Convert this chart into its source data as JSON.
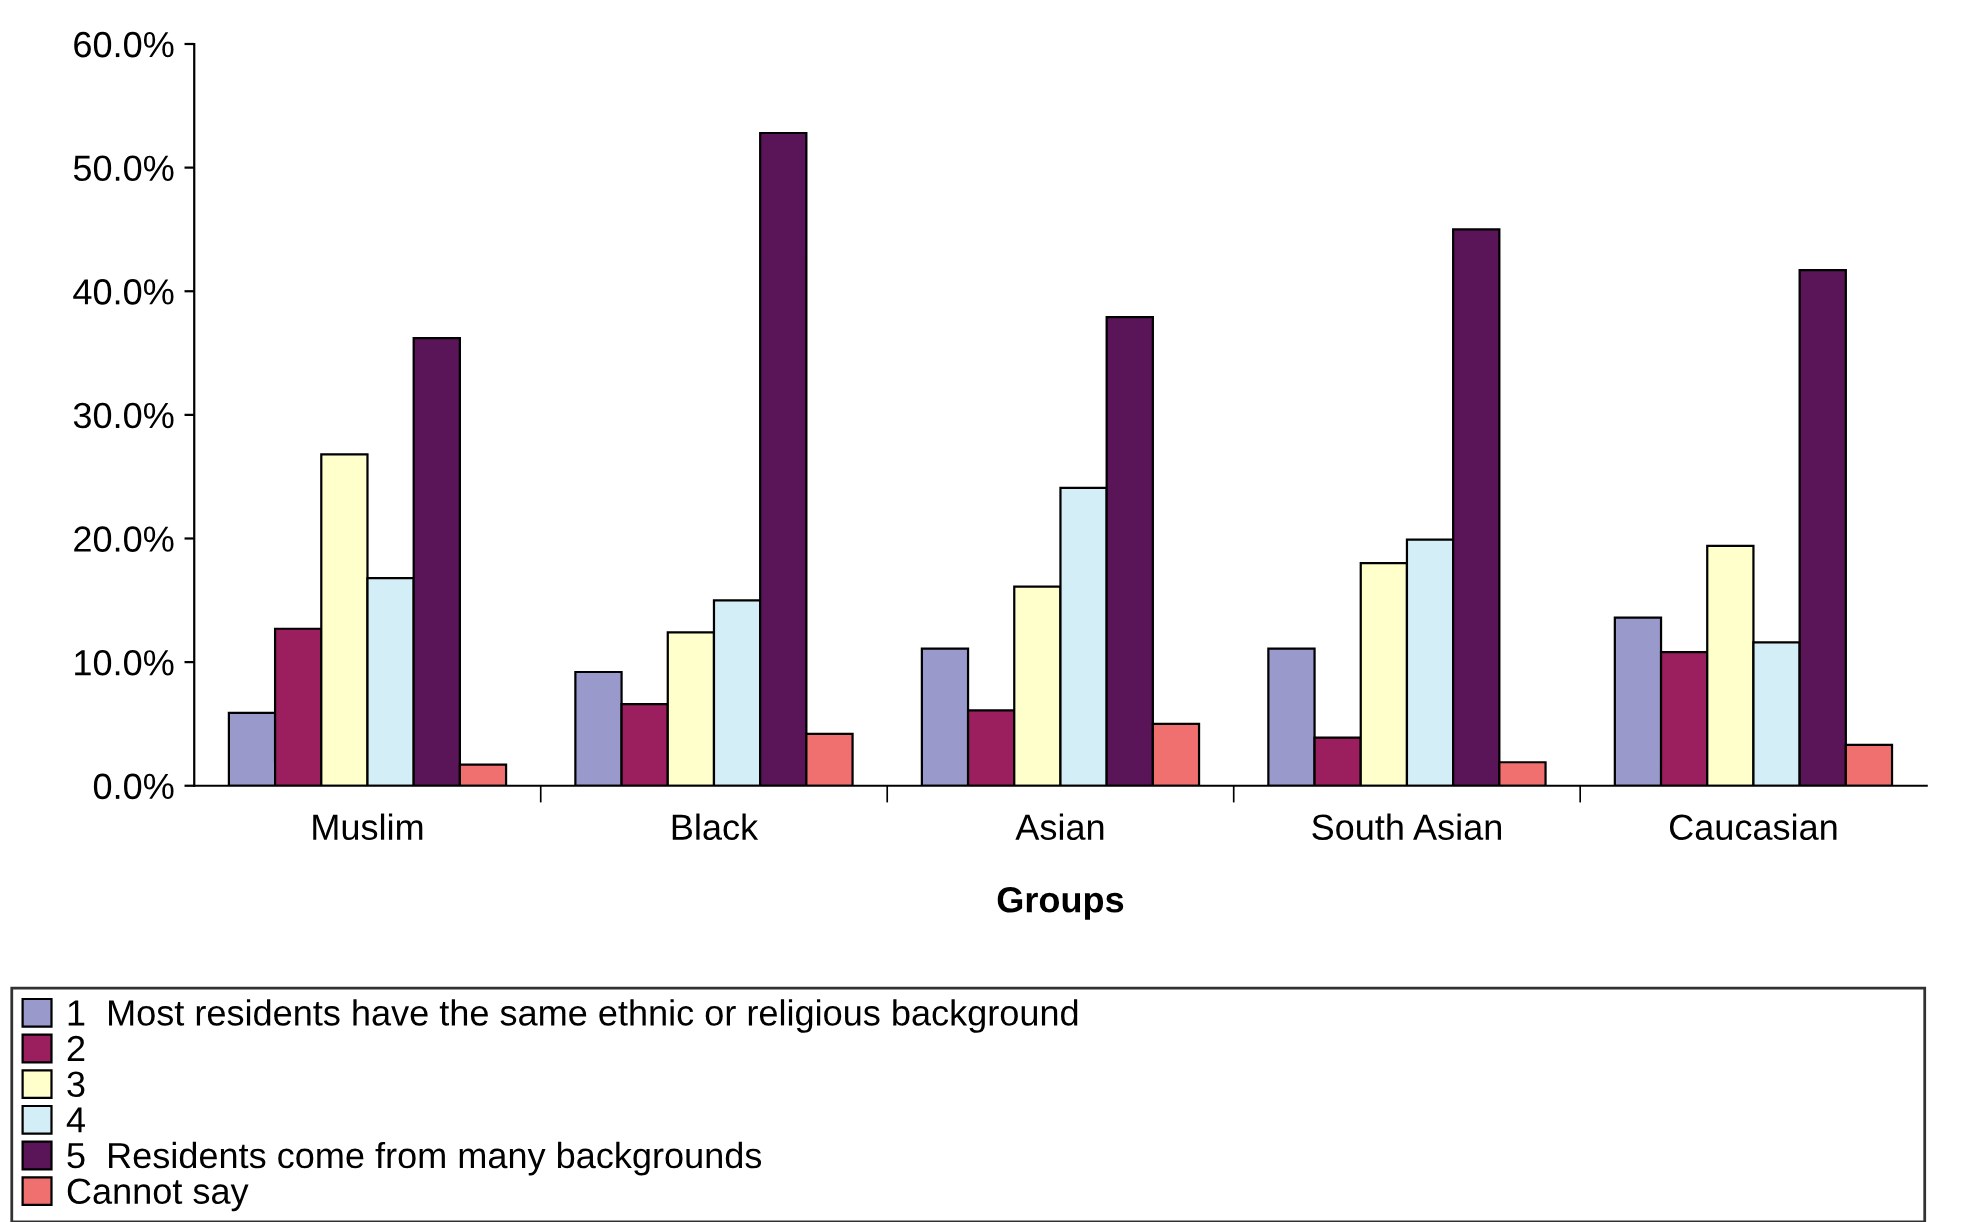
{
  "chart_data": {
    "type": "bar",
    "xlabel": "Groups",
    "categories": [
      "Muslim",
      "Black",
      "Asian",
      "South Asian",
      "Caucasian"
    ],
    "series": [
      {
        "name": "1  Most residents have the same ethnic or religious background",
        "color": "#9999cc",
        "values": [
          5.9,
          9.2,
          11.1,
          11.1,
          13.6
        ]
      },
      {
        "name": "2",
        "color": "#9b1f5e",
        "values": [
          12.7,
          6.6,
          6.1,
          3.9,
          10.8
        ]
      },
      {
        "name": "3",
        "color": "#ffffcc",
        "values": [
          26.8,
          12.4,
          16.1,
          18.0,
          19.4
        ]
      },
      {
        "name": "4",
        "color": "#d3eef6",
        "values": [
          16.8,
          15.0,
          24.1,
          19.9,
          11.6
        ]
      },
      {
        "name": "5  Residents come from many backgrounds",
        "color": "#5a1458",
        "values": [
          36.2,
          52.8,
          37.9,
          45.0,
          41.7
        ]
      },
      {
        "name": "Cannot say",
        "color": "#f07070",
        "values": [
          1.7,
          4.2,
          5.0,
          1.9,
          3.3
        ]
      }
    ],
    "ylim": [
      0,
      60
    ],
    "yticks": [
      {
        "value": 0,
        "label": "0.0%"
      },
      {
        "value": 10,
        "label": "10.0%"
      },
      {
        "value": 20,
        "label": "20.0%"
      },
      {
        "value": 30,
        "label": "30.0%"
      },
      {
        "value": 40,
        "label": "40.0%"
      },
      {
        "value": 50,
        "label": "50.0%"
      },
      {
        "value": 60,
        "label": "60.0%"
      }
    ],
    "grid": false,
    "legend": "bottom"
  }
}
